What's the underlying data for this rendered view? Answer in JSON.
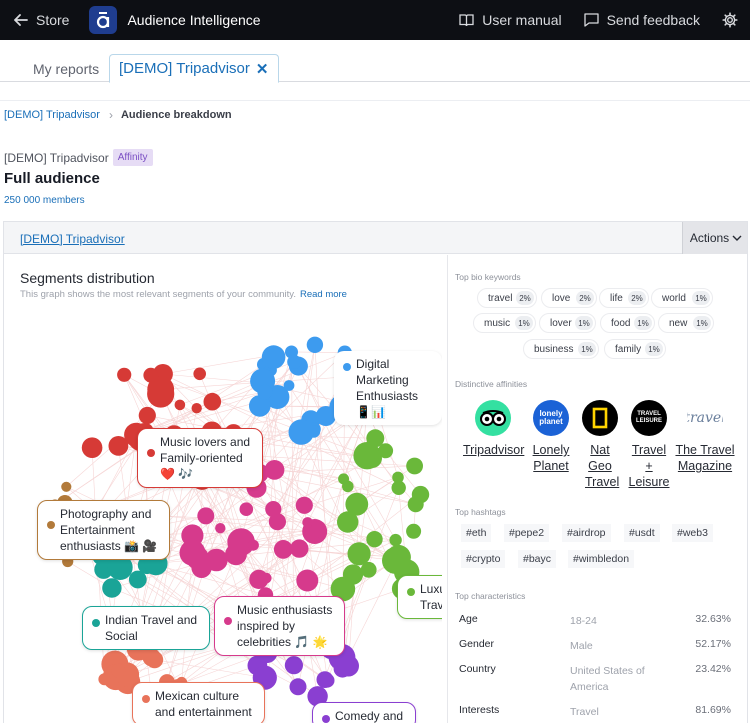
{
  "topbar": {
    "store_label": "Store",
    "app_title": "Audience Intelligence",
    "user_manual": "User manual",
    "send_feedback": "Send feedback"
  },
  "tabs": {
    "my_reports": "My reports",
    "active_tab": "[DEMO] Tripadvisor",
    "close_glyph": "✕"
  },
  "breadcrumb": {
    "root": "[DEMO] Tripadvisor",
    "separator": "›",
    "current": "Audience breakdown"
  },
  "header": {
    "report_name": "[DEMO] Tripadvisor",
    "badge": "Affinity",
    "title": "Full audience",
    "members": "250 000 members"
  },
  "panel": {
    "name": "[DEMO] Tripadvisor",
    "actions_label": "Actions"
  },
  "segments": {
    "title": "Segments distribution",
    "description": "This graph shows the most relevant segments of your community.",
    "read_more": "Read more",
    "labels": [
      {
        "line1": "Digital Marketing",
        "line2": "Enthusiasts 📱📊",
        "color": "#3d9bef"
      },
      {
        "line1": "Music lovers and",
        "line2": "Family-oriented",
        "line3": "❤️ 🎶",
        "color": "#d63a36"
      },
      {
        "line1": "Photography and",
        "line2": "Entertainment",
        "line3": "enthusiasts 📸 🎥",
        "color": "#b27a3a"
      },
      {
        "line1": "Indian Travel and",
        "line2": "Social",
        "color": "#1aa497"
      },
      {
        "line1": "Music enthusiasts",
        "line2": "inspired by",
        "line3": "celebrities 🎵 🌟",
        "color": "#d63a8c"
      },
      {
        "line1": "Luxu",
        "line2": "Trave",
        "color": "#6ab83a"
      },
      {
        "line1": "Mexican culture",
        "line2": "and entertainment",
        "color": "#e8735a"
      },
      {
        "line1": "Comedy and",
        "color": "#8a3fd1"
      }
    ]
  },
  "keywords": {
    "title": "Top bio keywords",
    "items": [
      {
        "word": "travel",
        "pct": "2%"
      },
      {
        "word": "love",
        "pct": "2%"
      },
      {
        "word": "life",
        "pct": "2%"
      },
      {
        "word": "world",
        "pct": "1%"
      },
      {
        "word": "music",
        "pct": "1%"
      },
      {
        "word": "lover",
        "pct": "1%"
      },
      {
        "word": "food",
        "pct": "1%"
      },
      {
        "word": "new",
        "pct": "1%"
      },
      {
        "word": "business",
        "pct": "1%"
      },
      {
        "word": "family",
        "pct": "1%"
      }
    ]
  },
  "affinities": {
    "title": "Distinctive affinities",
    "items": [
      {
        "name": "Tripadvisor",
        "logo_text": ""
      },
      {
        "name": "Lonely Planet",
        "logo_text": "lonely planet"
      },
      {
        "name": "Nat Geo Travel",
        "logo_text": ""
      },
      {
        "name": "Travel + Leisure",
        "logo_text": "TRAVEL LEISURE"
      },
      {
        "name": "The Travel Magazine",
        "logo_text": "travel"
      }
    ]
  },
  "hashtags": {
    "title": "Top hashtags",
    "items": [
      "#eth",
      "#pepe2",
      "#airdrop",
      "#usdt",
      "#web3",
      "#crypto",
      "#bayc",
      "#wimbledon"
    ]
  },
  "characteristics": {
    "title": "Top characteristics",
    "rows": [
      {
        "label": "Age",
        "value": "18-24",
        "pct": "32.63%"
      },
      {
        "label": "Gender",
        "value": "Male",
        "pct": "52.17%"
      },
      {
        "label": "Country",
        "value": "United States of America",
        "pct": "23.42%"
      },
      {
        "label": "Interests",
        "value": "Travel",
        "pct": "81.69%"
      }
    ]
  },
  "colors": {
    "accent": "#1a6fb8",
    "topbar": "#0d0f14",
    "blue": "#3d9bef",
    "red": "#d63a36",
    "pink": "#d63a8c",
    "green": "#6ab83a",
    "teal": "#1aa497",
    "orange": "#e8735a",
    "purple": "#8a3fd1",
    "brown": "#b27a3a"
  }
}
